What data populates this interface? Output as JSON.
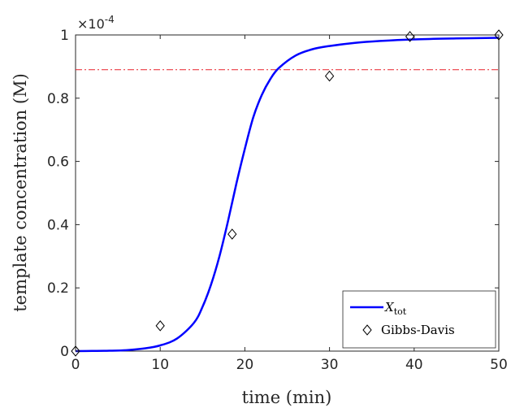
{
  "chart_data": {
    "type": "line",
    "xlabel": "time (min)",
    "ylabel": "template concentration (M)",
    "xlim": [
      0,
      50
    ],
    "ylim": [
      0,
      1
    ],
    "y_scale_exponent": "×10",
    "y_scale_exponent_power": "-4",
    "xticks": [
      "0",
      "10",
      "20",
      "30",
      "40",
      "50"
    ],
    "yticks": [
      "0",
      "0.2",
      "0.4",
      "0.6",
      "0.8",
      "1"
    ],
    "xtick_values": [
      0,
      10,
      20,
      30,
      40,
      50
    ],
    "ytick_values": [
      0,
      0.2,
      0.4,
      0.6,
      0.8,
      1.0
    ],
    "reference_line": {
      "y": 0.89,
      "color": "#e8202a",
      "style": "dash-dot"
    },
    "series": [
      {
        "name": "X",
        "name_subscript": "tot",
        "kind": "line",
        "color": "#0000ff",
        "x": [
          0,
          2,
          4,
          6,
          8,
          10,
          12,
          14,
          15,
          16,
          17,
          18,
          19,
          20,
          21,
          22,
          23,
          24,
          26,
          28,
          30,
          33,
          36,
          40,
          45,
          50
        ],
        "y": [
          0.0,
          0.0005,
          0.0012,
          0.003,
          0.008,
          0.018,
          0.04,
          0.09,
          0.14,
          0.21,
          0.3,
          0.41,
          0.53,
          0.64,
          0.74,
          0.81,
          0.86,
          0.895,
          0.935,
          0.955,
          0.965,
          0.975,
          0.981,
          0.986,
          0.989,
          0.991
        ]
      },
      {
        "name": "Gibbs-Davis",
        "kind": "scatter",
        "marker": "diamond",
        "color": "#000000",
        "x": [
          0,
          10,
          18.5,
          30,
          39.5,
          50
        ],
        "y": [
          0.0,
          0.08,
          0.37,
          0.87,
          0.995,
          1.0
        ]
      }
    ],
    "grid": false,
    "legend_position": "bottom-right"
  }
}
